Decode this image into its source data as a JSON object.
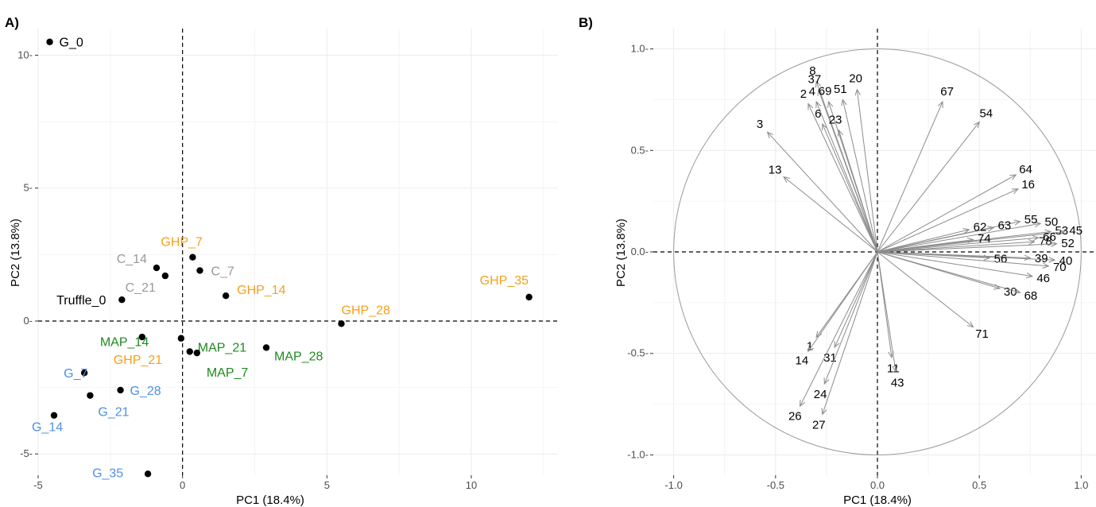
{
  "chart_data": [
    {
      "panel": "A)",
      "type": "scatter",
      "xlabel": "PC1 (18.4%)",
      "ylabel": "PC2 (13.8%)",
      "xlim": [
        -5.0,
        13.0
      ],
      "ylim": [
        -5.8,
        11.0
      ],
      "xticks": [
        -5,
        0,
        5,
        10
      ],
      "yticks": [
        -5,
        0,
        5,
        10
      ],
      "grid": true,
      "colors": {
        "black": "#000000",
        "grey": "#999999",
        "orange": "#f5a01a",
        "green": "#1f8a1f",
        "blue": "#4f8fe8"
      },
      "points": [
        {
          "label": "G_0",
          "x": -4.6,
          "y": 10.5,
          "color": "black"
        },
        {
          "label": "Truffle_0",
          "x": -2.1,
          "y": 0.8,
          "color": "black"
        },
        {
          "label": "C_14",
          "x": -0.9,
          "y": 2.0,
          "color": "grey"
        },
        {
          "label": "C_21",
          "x": -0.6,
          "y": 1.7,
          "color": "grey"
        },
        {
          "label": "C_7",
          "x": 0.6,
          "y": 1.9,
          "color": "grey"
        },
        {
          "label": "GHP_7",
          "x": 0.35,
          "y": 2.4,
          "color": "orange"
        },
        {
          "label": "GHP_14",
          "x": 1.5,
          "y": 0.95,
          "color": "orange"
        },
        {
          "label": "GHP_21",
          "x": -1.4,
          "y": -0.6,
          "color": "orange"
        },
        {
          "label": "GHP_28",
          "x": 5.5,
          "y": -0.1,
          "color": "orange"
        },
        {
          "label": "GHP_35",
          "x": 12.0,
          "y": 0.9,
          "color": "orange"
        },
        {
          "label": "MAP_14",
          "x": -0.05,
          "y": -0.65,
          "color": "green"
        },
        {
          "label": "MAP_21",
          "x": 0.25,
          "y": -1.15,
          "color": "green"
        },
        {
          "label": "MAP_7",
          "x": 0.5,
          "y": -1.2,
          "color": "green"
        },
        {
          "label": "MAP_28",
          "x": 2.9,
          "y": -1.0,
          "color": "green"
        },
        {
          "label": "G_7",
          "x": -3.4,
          "y": -1.95,
          "color": "blue"
        },
        {
          "label": "G_28",
          "x": -2.15,
          "y": -2.6,
          "color": "blue"
        },
        {
          "label": "G_21",
          "x": -3.2,
          "y": -2.8,
          "color": "blue"
        },
        {
          "label": "G_14",
          "x": -4.45,
          "y": -3.55,
          "color": "blue"
        },
        {
          "label": "G_35",
          "x": -1.2,
          "y": -5.75,
          "color": "blue"
        }
      ]
    },
    {
      "panel": "B)",
      "type": "scatter",
      "subtype": "correlation-circle",
      "xlabel": "PC1 (18.4%)",
      "ylabel": "PC2 (13.8%)",
      "xlim": [
        -1.1,
        1.1
      ],
      "ylim": [
        -1.1,
        1.1
      ],
      "xticks": [
        -1.0,
        -0.5,
        0.0,
        0.5,
        1.0
      ],
      "xtick_labels": [
        "-1.0",
        "-0.5",
        "0.0",
        "0.5",
        "1.0"
      ],
      "yticks": [
        -1.0,
        -0.5,
        0.0,
        0.5,
        1.0
      ],
      "ytick_labels": [
        "-1.0",
        "-0.5",
        "0.0",
        "0.5",
        "1.0"
      ],
      "grid": true,
      "circle_radius": 1.0,
      "arrow_color": "#8c8c8c",
      "vectors": [
        {
          "label": "8",
          "x": -0.3,
          "y": 0.84
        },
        {
          "label": "37",
          "x": -0.29,
          "y": 0.8
        },
        {
          "label": "51",
          "x": -0.17,
          "y": 0.75
        },
        {
          "label": "69",
          "x": -0.24,
          "y": 0.74
        },
        {
          "label": "4",
          "x": -0.3,
          "y": 0.74
        },
        {
          "label": "20",
          "x": -0.1,
          "y": 0.8
        },
        {
          "label": "2",
          "x": -0.34,
          "y": 0.73
        },
        {
          "label": "6",
          "x": -0.27,
          "y": 0.63
        },
        {
          "label": "23",
          "x": -0.19,
          "y": 0.6
        },
        {
          "label": "3",
          "x": -0.54,
          "y": 0.59
        },
        {
          "label": "13",
          "x": -0.46,
          "y": 0.37
        },
        {
          "label": "67",
          "x": 0.32,
          "y": 0.74
        },
        {
          "label": "54",
          "x": 0.5,
          "y": 0.64
        },
        {
          "label": "64",
          "x": 0.68,
          "y": 0.38
        },
        {
          "label": "16",
          "x": 0.69,
          "y": 0.31
        },
        {
          "label": "50",
          "x": 0.8,
          "y": 0.14
        },
        {
          "label": "55",
          "x": 0.7,
          "y": 0.15
        },
        {
          "label": "63",
          "x": 0.57,
          "y": 0.12
        },
        {
          "label": "62",
          "x": 0.45,
          "y": 0.11
        },
        {
          "label": "53",
          "x": 0.85,
          "y": 0.1
        },
        {
          "label": "45",
          "x": 0.92,
          "y": 0.1
        },
        {
          "label": "66",
          "x": 0.79,
          "y": 0.07
        },
        {
          "label": "74",
          "x": 0.47,
          "y": 0.06
        },
        {
          "label": "78",
          "x": 0.77,
          "y": 0.05
        },
        {
          "label": "52",
          "x": 0.88,
          "y": 0.04
        },
        {
          "label": "40",
          "x": 0.87,
          "y": -0.04
        },
        {
          "label": "39",
          "x": 0.75,
          "y": -0.03
        },
        {
          "label": "56",
          "x": 0.55,
          "y": -0.03
        },
        {
          "label": "70",
          "x": 0.84,
          "y": -0.07
        },
        {
          "label": "46",
          "x": 0.76,
          "y": -0.12
        },
        {
          "label": "30",
          "x": 0.6,
          "y": -0.18
        },
        {
          "label": "68",
          "x": 0.7,
          "y": -0.2
        },
        {
          "label": "71",
          "x": 0.47,
          "y": -0.37
        },
        {
          "label": "1",
          "x": -0.3,
          "y": -0.42
        },
        {
          "label": "14",
          "x": -0.34,
          "y": -0.49
        },
        {
          "label": "31",
          "x": -0.21,
          "y": -0.47
        },
        {
          "label": "11",
          "x": 0.07,
          "y": -0.52
        },
        {
          "label": "43",
          "x": 0.09,
          "y": -0.59
        },
        {
          "label": "24",
          "x": -0.26,
          "y": -0.65
        },
        {
          "label": "26",
          "x": -0.38,
          "y": -0.76
        },
        {
          "label": "27",
          "x": -0.27,
          "y": -0.8
        }
      ]
    }
  ]
}
